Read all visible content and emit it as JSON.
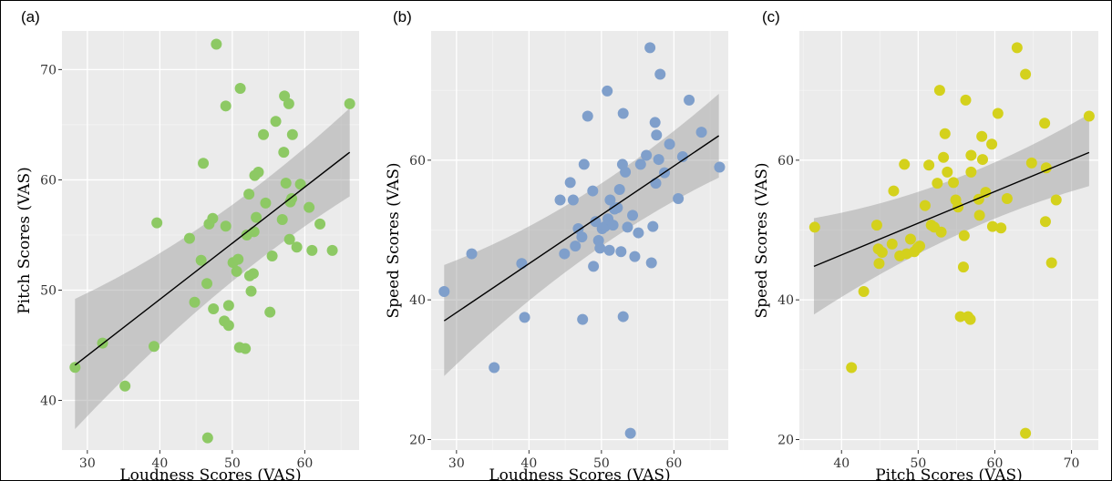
{
  "chart_data": [
    {
      "type": "scatter",
      "panel_label": "(a)",
      "xlabel": "Loudness Scores (VAS)",
      "ylabel": "Pitch Scores (VAS)",
      "xlim": [
        26.5,
        67.5
      ],
      "ylim": [
        35.5,
        73.5
      ],
      "xticks": [
        30,
        40,
        50,
        60
      ],
      "yticks": [
        40,
        50,
        60,
        70
      ],
      "grid": true,
      "point_color": "#8dc964",
      "regression_line": {
        "x": [
          28.3,
          66.2
        ],
        "y": [
          43.2,
          62.5
        ],
        "ci_lower": [
          37.4,
          58.5
        ],
        "ci_upper": [
          49.2,
          66.5
        ]
      },
      "points": [
        [
          28.3,
          43.0
        ],
        [
          32.1,
          45.2
        ],
        [
          35.2,
          41.3
        ],
        [
          39.2,
          44.9
        ],
        [
          39.6,
          56.1
        ],
        [
          44.1,
          54.7
        ],
        [
          44.8,
          48.9
        ],
        [
          45.7,
          52.7
        ],
        [
          46.0,
          61.5
        ],
        [
          46.5,
          50.6
        ],
        [
          46.6,
          36.6
        ],
        [
          46.8,
          56.0
        ],
        [
          47.3,
          56.5
        ],
        [
          47.4,
          48.3
        ],
        [
          47.8,
          72.3
        ],
        [
          48.9,
          47.2
        ],
        [
          49.1,
          55.8
        ],
        [
          49.1,
          66.7
        ],
        [
          49.5,
          46.8
        ],
        [
          49.5,
          48.6
        ],
        [
          50.1,
          52.5
        ],
        [
          50.6,
          51.7
        ],
        [
          50.8,
          52.8
        ],
        [
          51.0,
          44.8
        ],
        [
          51.1,
          68.3
        ],
        [
          51.8,
          44.7
        ],
        [
          52.0,
          55.0
        ],
        [
          52.3,
          58.7
        ],
        [
          52.4,
          51.3
        ],
        [
          52.6,
          49.9
        ],
        [
          52.9,
          51.5
        ],
        [
          53.0,
          55.3
        ],
        [
          53.1,
          60.4
        ],
        [
          53.3,
          56.6
        ],
        [
          53.6,
          60.7
        ],
        [
          54.3,
          64.1
        ],
        [
          54.6,
          57.9
        ],
        [
          55.2,
          48.0
        ],
        [
          55.5,
          53.1
        ],
        [
          56.0,
          65.3
        ],
        [
          56.9,
          56.4
        ],
        [
          57.1,
          62.5
        ],
        [
          57.2,
          67.6
        ],
        [
          57.4,
          59.7
        ],
        [
          57.8,
          66.9
        ],
        [
          57.9,
          54.6
        ],
        [
          58.0,
          58.0
        ],
        [
          58.2,
          58.3
        ],
        [
          58.3,
          64.1
        ],
        [
          58.9,
          53.9
        ],
        [
          59.4,
          59.6
        ],
        [
          60.6,
          57.5
        ],
        [
          61.0,
          53.6
        ],
        [
          62.1,
          56.0
        ],
        [
          63.8,
          53.6
        ],
        [
          66.2,
          66.9
        ]
      ]
    },
    {
      "type": "scatter",
      "panel_label": "(b)",
      "xlabel": "Loudness Scores (VAS)",
      "ylabel": "Speed Scores (VAS)",
      "xlim": [
        26.5,
        67.5
      ],
      "ylim": [
        18.5,
        78.5
      ],
      "xticks": [
        30,
        40,
        50,
        60
      ],
      "yticks": [
        20,
        40,
        60
      ],
      "grid": true,
      "point_color": "#7f9fcb",
      "regression_line": {
        "x": [
          28.3,
          66.2
        ],
        "y": [
          37.0,
          63.5
        ],
        "ci_lower": [
          29.1,
          57.5
        ],
        "ci_upper": [
          45.0,
          69.5
        ]
      },
      "points": [
        [
          28.3,
          41.2
        ],
        [
          32.1,
          46.6
        ],
        [
          35.2,
          30.3
        ],
        [
          39.0,
          45.2
        ],
        [
          39.4,
          37.5
        ],
        [
          44.3,
          54.3
        ],
        [
          44.9,
          46.6
        ],
        [
          45.7,
          56.8
        ],
        [
          46.1,
          54.3
        ],
        [
          46.4,
          47.7
        ],
        [
          46.8,
          50.2
        ],
        [
          47.3,
          49.0
        ],
        [
          47.4,
          37.2
        ],
        [
          47.6,
          59.4
        ],
        [
          48.1,
          66.3
        ],
        [
          48.8,
          55.6
        ],
        [
          48.9,
          44.8
        ],
        [
          49.2,
          51.2
        ],
        [
          49.6,
          48.5
        ],
        [
          49.8,
          47.4
        ],
        [
          50.1,
          50.2
        ],
        [
          50.5,
          50.5
        ],
        [
          50.8,
          69.9
        ],
        [
          50.9,
          51.6
        ],
        [
          51.1,
          47.1
        ],
        [
          51.2,
          54.3
        ],
        [
          51.6,
          50.7
        ],
        [
          51.8,
          53.0
        ],
        [
          52.2,
          53.2
        ],
        [
          52.5,
          55.8
        ],
        [
          52.7,
          46.9
        ],
        [
          52.9,
          59.4
        ],
        [
          53.0,
          37.6
        ],
        [
          53.0,
          66.7
        ],
        [
          53.3,
          58.3
        ],
        [
          53.6,
          50.4
        ],
        [
          54.0,
          20.9
        ],
        [
          54.3,
          52.1
        ],
        [
          54.6,
          46.2
        ],
        [
          55.1,
          49.6
        ],
        [
          55.4,
          59.4
        ],
        [
          56.2,
          60.7
        ],
        [
          56.7,
          76.1
        ],
        [
          56.9,
          45.3
        ],
        [
          57.1,
          50.5
        ],
        [
          57.4,
          65.4
        ],
        [
          57.5,
          56.7
        ],
        [
          57.6,
          63.6
        ],
        [
          57.9,
          60.1
        ],
        [
          58.1,
          72.3
        ],
        [
          58.7,
          58.2
        ],
        [
          59.4,
          62.3
        ],
        [
          60.6,
          54.5
        ],
        [
          61.2,
          60.5
        ],
        [
          62.1,
          68.6
        ],
        [
          63.8,
          64.0
        ],
        [
          66.3,
          59.0
        ]
      ]
    },
    {
      "type": "scatter",
      "panel_label": "(c)",
      "xlabel": "Pitch Scores (VAS)",
      "ylabel": "Speed Scores (VAS)",
      "xlim": [
        34.5,
        73.5
      ],
      "ylim": [
        18.5,
        78.5
      ],
      "xticks": [
        40,
        50,
        60,
        70
      ],
      "yticks": [
        20,
        40,
        60
      ],
      "grid": true,
      "point_color": "#d4d11c",
      "regression_line": {
        "x": [
          36.4,
          72.3
        ],
        "y": [
          44.8,
          61.1
        ],
        "ci_lower": [
          37.9,
          56.3
        ],
        "ci_upper": [
          51.7,
          66.6
        ]
      },
      "points": [
        [
          36.5,
          50.4
        ],
        [
          41.3,
          30.3
        ],
        [
          42.9,
          41.2
        ],
        [
          44.6,
          50.7
        ],
        [
          44.8,
          47.3
        ],
        [
          44.9,
          45.2
        ],
        [
          45.3,
          46.8
        ],
        [
          46.6,
          48.0
        ],
        [
          46.8,
          55.6
        ],
        [
          47.6,
          46.3
        ],
        [
          48.2,
          59.4
        ],
        [
          48.5,
          46.6
        ],
        [
          49.0,
          48.7
        ],
        [
          49.5,
          46.9
        ],
        [
          49.9,
          47.4
        ],
        [
          50.2,
          47.7
        ],
        [
          50.9,
          53.5
        ],
        [
          51.4,
          59.3
        ],
        [
          51.7,
          50.7
        ],
        [
          52.1,
          50.4
        ],
        [
          52.5,
          56.7
        ],
        [
          52.8,
          70.0
        ],
        [
          53.0,
          49.7
        ],
        [
          53.3,
          60.4
        ],
        [
          53.5,
          63.8
        ],
        [
          53.8,
          58.3
        ],
        [
          54.6,
          56.8
        ],
        [
          54.9,
          54.3
        ],
        [
          55.2,
          53.3
        ],
        [
          55.5,
          37.6
        ],
        [
          55.9,
          44.7
        ],
        [
          56.0,
          49.2
        ],
        [
          56.2,
          68.6
        ],
        [
          56.5,
          37.6
        ],
        [
          56.8,
          37.2
        ],
        [
          56.9,
          60.7
        ],
        [
          56.9,
          58.3
        ],
        [
          57.9,
          54.4
        ],
        [
          58.0,
          52.1
        ],
        [
          58.3,
          63.4
        ],
        [
          58.4,
          60.1
        ],
        [
          58.8,
          55.4
        ],
        [
          59.6,
          62.3
        ],
        [
          59.7,
          50.5
        ],
        [
          60.4,
          66.7
        ],
        [
          60.8,
          50.3
        ],
        [
          61.6,
          54.5
        ],
        [
          62.9,
          76.1
        ],
        [
          64.0,
          72.3
        ],
        [
          64.0,
          20.9
        ],
        [
          64.8,
          59.6
        ],
        [
          66.5,
          65.3
        ],
        [
          66.6,
          51.2
        ],
        [
          66.7,
          58.9
        ],
        [
          67.4,
          45.3
        ],
        [
          68.0,
          54.3
        ],
        [
          72.3,
          66.3
        ]
      ]
    }
  ]
}
